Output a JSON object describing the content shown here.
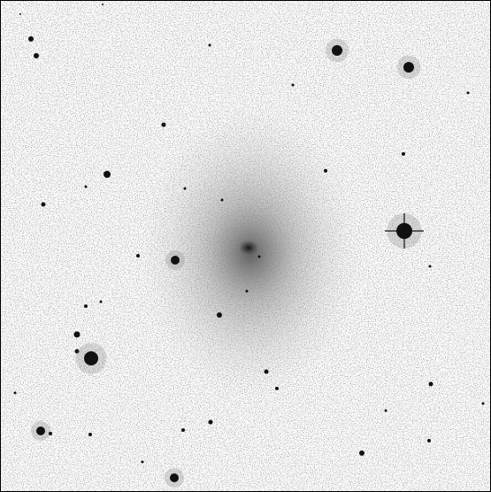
{
  "image": {
    "kind": "astronomical-negative-image",
    "subject": "diffuse-galaxy",
    "colors": {
      "sky": "#ffffff",
      "ink": "#111111",
      "noise": "#8a8a8a",
      "border": "#000000"
    }
  }
}
